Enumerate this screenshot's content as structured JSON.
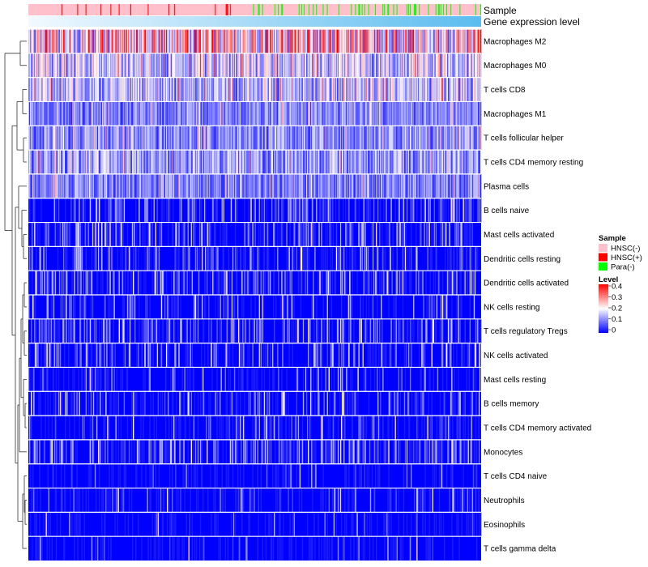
{
  "chart_data": {
    "type": "heatmap",
    "title": "",
    "column_annotations": [
      {
        "name": "Sample"
      },
      {
        "name": "Gene expression level"
      }
    ],
    "rows": [
      "Macrophages M2",
      "Macrophages M0",
      "T cells CD8",
      "Macrophages M1",
      "T cells follicular helper",
      "T cells CD4 memory resting",
      "Plasma cells",
      "B cells naive",
      "Mast cells activated",
      "Dendritic cells resting",
      "Dendritic cells activated",
      "NK cells resting",
      "T cells regulatory  Tregs",
      "NK cells activated",
      "Mast cells resting",
      "B cells memory",
      "T cells CD4 memory activated",
      "Monocytes",
      "T cells CD4 naive",
      "Neutrophils",
      "Eosinophils",
      "T cells gamma delta"
    ],
    "row_mean_level": [
      0.22,
      0.15,
      0.14,
      0.09,
      0.1,
      0.11,
      0.09,
      0.05,
      0.05,
      0.04,
      0.05,
      0.03,
      0.05,
      0.04,
      0.03,
      0.04,
      0.03,
      0.06,
      0.01,
      0.02,
      0.01,
      0.01
    ],
    "n_samples": 546,
    "sample_groups": [
      {
        "name": "HNSC(-)",
        "color": "#ffc0cb"
      },
      {
        "name": "HNSC(+)",
        "color": "#ff0000"
      },
      {
        "name": "Para(-)",
        "color": "#00ff00"
      }
    ],
    "level_legend": {
      "title": "Level",
      "ticks": [
        "0.4",
        "0.3",
        "0.2",
        "0.1",
        "0"
      ],
      "range": [
        0,
        0.4
      ],
      "colors": [
        "#0000ff",
        "#ffffff",
        "#ff0000"
      ]
    },
    "sample_legend_title": "Sample",
    "gene_expression_colors": [
      "#f2f9ff",
      "#5bbcef"
    ],
    "dendrogram": "hierarchical clustering of rows (left side)"
  }
}
